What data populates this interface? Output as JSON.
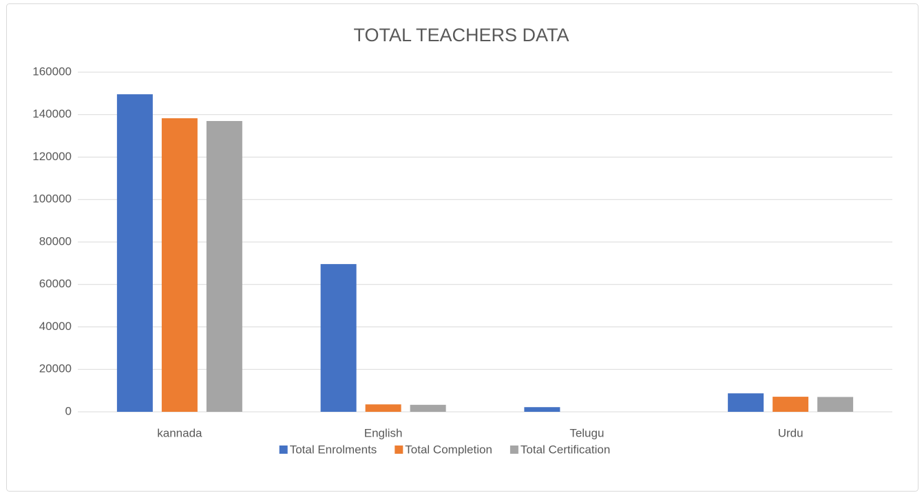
{
  "chart_data": {
    "type": "bar",
    "title": "TOTAL TEACHERS DATA",
    "categories": [
      "kannada",
      "English",
      "Telugu",
      "Urdu"
    ],
    "series": [
      {
        "name": "Total Enrolments",
        "color": "#4472c4",
        "values": [
          149600,
          69600,
          2200,
          8700
        ]
      },
      {
        "name": "Total Completion",
        "color": "#ed7d31",
        "values": [
          138300,
          3500,
          0,
          7100
        ]
      },
      {
        "name": "Total Certification",
        "color": "#a5a5a5",
        "values": [
          137000,
          3300,
          0,
          7000
        ]
      }
    ],
    "ylim": [
      0,
      160000
    ],
    "yticks": [
      0,
      20000,
      40000,
      60000,
      80000,
      100000,
      120000,
      140000,
      160000
    ],
    "grid": true,
    "legend": "bottom"
  }
}
